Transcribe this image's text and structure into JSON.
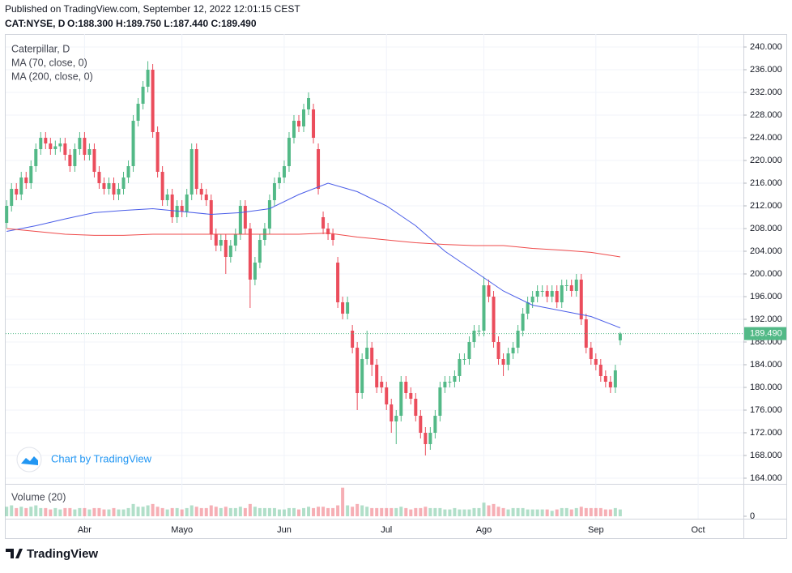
{
  "header": {
    "published": "Published on TradingView.com, September 12, 2022 12:01:15 CEST",
    "symbol": "CAT:NYSE, D",
    "ohlc": "O:188.300 H:189.750 L:187.440 C:189.490"
  },
  "branding": {
    "watermark": "Chart by TradingView",
    "logo": "TradingView"
  },
  "chart_data": {
    "type": "candlestick",
    "title": "Caterpillar, D",
    "up_color": "#53b987",
    "down_color": "#eb4d5c",
    "open": [
      209,
      212,
      215,
      214,
      217,
      216,
      219,
      222,
      224,
      223,
      222,
      222.5,
      223,
      221,
      219,
      222,
      224,
      221,
      222,
      218,
      216,
      215,
      216,
      214,
      215,
      217,
      219,
      227,
      230,
      233,
      236,
      225,
      218,
      213,
      214,
      210,
      212,
      211,
      214,
      222,
      215,
      214,
      213,
      207,
      205,
      206,
      203,
      205,
      207,
      212,
      208,
      199,
      202,
      206,
      208,
      213,
      216,
      217,
      219,
      224,
      227,
      226,
      229,
      229,
      222,
      210,
      208,
      207,
      202,
      195,
      193,
      190,
      187,
      179,
      185,
      187,
      184,
      181,
      180,
      177,
      174,
      175,
      181,
      179,
      178,
      175,
      172,
      170,
      172,
      175,
      180,
      181,
      181,
      182,
      185,
      185,
      188,
      190,
      190,
      198,
      196,
      188,
      185,
      184,
      186,
      187,
      190,
      193,
      195,
      196,
      197,
      197,
      196,
      197,
      195,
      198,
      198,
      197,
      199,
      192,
      187,
      185,
      184,
      182,
      181,
      180,
      188.3
    ],
    "high": [
      213,
      216,
      216,
      218,
      218,
      220,
      223,
      225,
      225,
      224,
      223.5,
      224,
      224,
      222,
      223,
      225,
      225,
      223,
      223,
      219,
      217,
      217,
      217,
      216,
      218,
      220,
      228,
      231,
      234,
      237.5,
      237,
      226,
      219,
      215,
      215,
      213,
      213,
      215,
      223,
      223,
      216,
      215,
      214,
      208,
      207,
      207,
      206,
      208,
      213,
      213,
      209,
      203,
      207,
      209,
      214,
      217,
      218,
      220,
      225,
      228,
      228,
      230,
      232,
      230,
      223,
      211,
      209,
      208,
      203,
      196,
      196,
      191,
      188,
      186,
      190,
      188,
      185,
      182,
      181,
      178,
      176,
      182,
      182,
      180,
      179,
      176,
      173,
      173,
      176,
      181,
      182,
      182,
      183,
      186,
      186,
      189,
      191,
      191,
      199.5,
      199,
      197,
      189,
      186,
      187,
      188,
      191,
      194,
      196,
      197,
      198,
      198,
      198,
      198,
      198,
      199,
      199,
      199,
      200,
      200,
      193,
      188,
      186,
      185,
      183,
      182,
      184,
      189.75
    ],
    "low": [
      208,
      211,
      213,
      213,
      215,
      215,
      218,
      221,
      222,
      221,
      221,
      221.5,
      220,
      218,
      218,
      221,
      220,
      220,
      217,
      215,
      214,
      214,
      213,
      213,
      214,
      216,
      218,
      226,
      229,
      232,
      224,
      217,
      212,
      212,
      209,
      209,
      210,
      210,
      213,
      214,
      213,
      212,
      206,
      204,
      204,
      200,
      202,
      204,
      206,
      207,
      194,
      198,
      201,
      205,
      207,
      212,
      215,
      216,
      218,
      223,
      225,
      225,
      228,
      223,
      214,
      207,
      206,
      205,
      194,
      192,
      192,
      186,
      176,
      178,
      184,
      182,
      179,
      179,
      176,
      172,
      170,
      174,
      178,
      177,
      174,
      171,
      168,
      169,
      171,
      174,
      179,
      180,
      180,
      181,
      184,
      184,
      187,
      189,
      189,
      195,
      187,
      184,
      182,
      183,
      185,
      186,
      189,
      192,
      194,
      195,
      196,
      195,
      195,
      194,
      194,
      197,
      196,
      196,
      191,
      186,
      184,
      183,
      181,
      180,
      179,
      179,
      187.44
    ],
    "close": [
      212,
      215,
      214,
      217,
      216,
      219,
      222,
      224,
      223,
      222,
      222.5,
      223,
      221,
      219,
      222,
      224,
      221,
      222,
      218,
      216,
      215,
      216,
      214,
      215,
      217,
      219,
      227,
      230,
      233,
      236,
      225,
      218,
      213,
      214,
      210,
      212,
      211,
      214,
      222,
      215,
      214,
      213,
      207,
      205,
      206,
      203,
      205,
      207,
      212,
      208,
      199,
      202,
      206,
      208,
      213,
      216,
      217,
      219,
      224,
      227,
      226,
      229,
      231,
      224,
      215,
      208,
      207,
      206,
      195,
      193,
      195,
      187,
      179,
      185,
      187,
      184,
      180,
      180,
      177,
      174,
      175,
      181,
      179,
      178,
      175,
      172,
      170,
      172,
      175,
      180,
      181,
      181,
      182,
      185,
      185,
      188,
      190,
      190,
      198,
      196,
      188,
      185,
      184,
      186,
      187,
      190,
      193,
      195,
      196,
      197,
      197,
      196,
      197,
      195,
      198,
      198,
      197,
      199,
      192,
      187,
      185,
      184,
      182,
      181,
      180,
      183,
      189.49
    ],
    "last_label": "189.490",
    "series": [
      {
        "name": "MA (70, close, 0)",
        "color": "#4a5de8",
        "x": [
          0,
          6,
          12,
          18,
          24,
          30,
          36,
          42,
          48,
          54,
          60,
          66,
          72,
          78,
          84,
          90,
          96,
          102,
          108,
          114,
          120,
          126
        ],
        "values": [
          207.5,
          208.5,
          209.7,
          210.8,
          211.2,
          211.5,
          211,
          210.5,
          210.8,
          211.5,
          214,
          216,
          214.5,
          212,
          208.5,
          204,
          200.5,
          197,
          194.5,
          193.5,
          192.5,
          190.5
        ]
      },
      {
        "name": "MA (200, close, 0)",
        "color": "#ef4a4a",
        "x": [
          0,
          6,
          12,
          18,
          24,
          30,
          36,
          42,
          48,
          54,
          60,
          66,
          72,
          78,
          84,
          90,
          96,
          102,
          108,
          114,
          120,
          126
        ],
        "values": [
          208,
          207.5,
          207,
          206.8,
          206.8,
          207,
          207,
          207,
          207,
          207,
          207,
          207.2,
          206.5,
          206,
          205.5,
          205.2,
          205,
          205,
          204.5,
          204.2,
          203.8,
          203
        ]
      }
    ],
    "volume": {
      "name": "Volume (20)",
      "ylim": [
        0,
        11
      ],
      "yticks": [
        0
      ],
      "values": [
        3.5,
        4,
        3,
        3.5,
        3,
        3.5,
        4,
        3,
        3,
        2.5,
        3,
        2.5,
        3,
        3,
        2.5,
        3,
        3,
        2.5,
        3,
        3,
        2.5,
        2.5,
        3,
        2.5,
        2.5,
        3,
        4.5,
        3.5,
        3.5,
        4,
        4.5,
        3.5,
        3,
        2.5,
        3,
        3,
        2.5,
        3,
        4,
        3.5,
        3,
        3,
        4,
        3.5,
        3,
        3.5,
        3,
        3,
        3.5,
        3,
        4.5,
        3.5,
        3,
        3,
        3,
        3,
        2.5,
        2.5,
        3,
        3,
        2.5,
        3,
        3.5,
        3,
        3.5,
        3.5,
        3,
        3,
        4,
        10.5,
        4,
        3.5,
        4.5,
        4,
        3.5,
        3,
        3,
        3,
        3,
        3,
        3,
        3.5,
        3,
        2.5,
        3,
        3,
        3.5,
        3,
        3,
        3,
        2.5,
        2.5,
        3,
        2.5,
        2.5,
        2.5,
        3,
        3,
        5,
        4,
        4.5,
        3.5,
        3,
        2.5,
        3,
        3,
        3,
        2.5,
        2.5,
        2.5,
        2.5,
        2.5,
        2,
        2.5,
        3,
        3,
        2.5,
        3,
        3.5,
        3,
        3,
        3,
        3,
        2.5,
        2.5,
        3,
        2.5
      ]
    },
    "xlim": [
      -0.2,
      151.3
    ],
    "xticks": [
      {
        "value": 16,
        "label": "Abr"
      },
      {
        "value": 36,
        "label": "Mayo"
      },
      {
        "value": 57,
        "label": "Jun"
      },
      {
        "value": 78,
        "label": "Jul"
      },
      {
        "value": 98,
        "label": "Ago"
      },
      {
        "value": 121,
        "label": "Sep"
      },
      {
        "value": 142,
        "label": "Oct"
      }
    ],
    "ylim": [
      163,
      242.286
    ],
    "yticks": [
      {
        "value": 164,
        "label": "164.000"
      },
      {
        "value": 168,
        "label": "168.000"
      },
      {
        "value": 172,
        "label": "172.000"
      },
      {
        "value": 176,
        "label": "176.000"
      },
      {
        "value": 180,
        "label": "180.000"
      },
      {
        "value": 184,
        "label": "184.000"
      },
      {
        "value": 188,
        "label": "188.000"
      },
      {
        "value": 192,
        "label": "192.000"
      },
      {
        "value": 196,
        "label": "196.000"
      },
      {
        "value": 200,
        "label": "200.000"
      },
      {
        "value": 204,
        "label": "204.000"
      },
      {
        "value": 208,
        "label": "208.000"
      },
      {
        "value": 212,
        "label": "212.000"
      },
      {
        "value": 216,
        "label": "216.000"
      },
      {
        "value": 220,
        "label": "220.000"
      },
      {
        "value": 224,
        "label": "224.000"
      },
      {
        "value": 228,
        "label": "228.000"
      },
      {
        "value": 232,
        "label": "232.000"
      },
      {
        "value": 236,
        "label": "236.000"
      },
      {
        "value": 240,
        "label": "240.000"
      }
    ],
    "grid": true
  }
}
